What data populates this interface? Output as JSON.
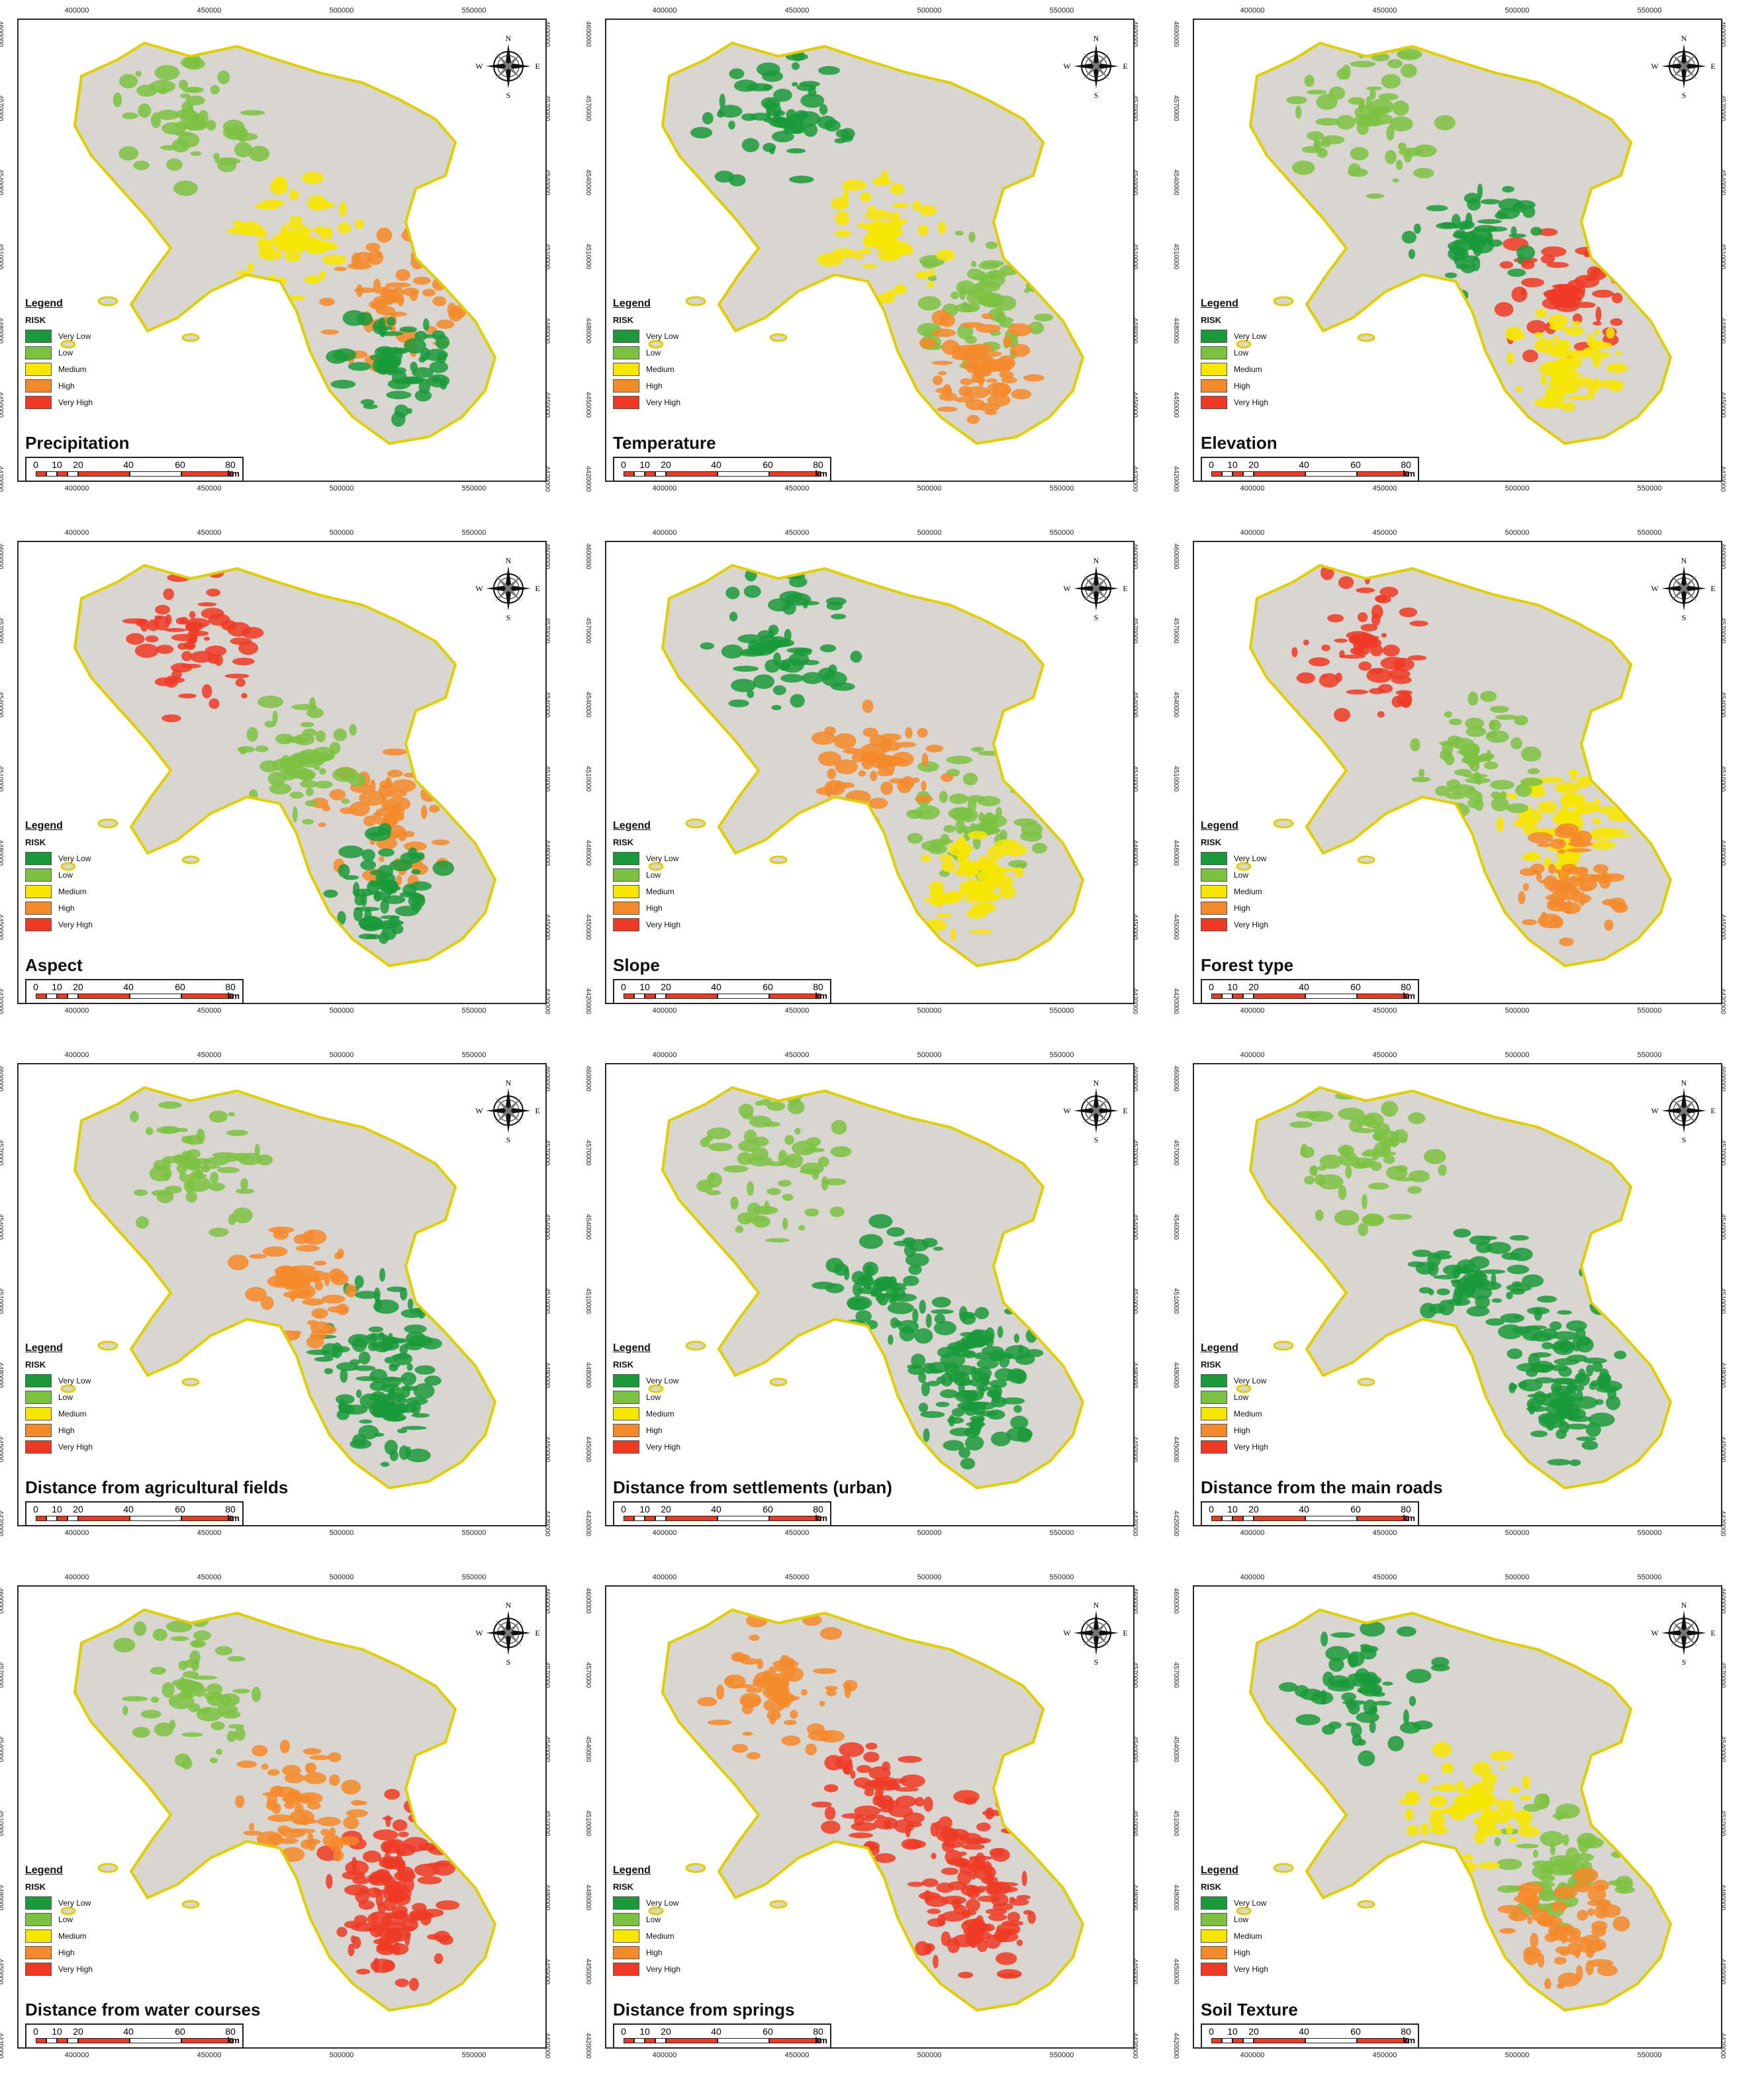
{
  "x_ticks": [
    "400000",
    "450000",
    "500000",
    "550000"
  ],
  "y_ticks": [
    "4600000",
    "4570000",
    "4540000",
    "4510000",
    "4480000",
    "4450000",
    "4420000"
  ],
  "compass": {
    "n": "N",
    "s": "S",
    "e": "E",
    "w": "W"
  },
  "legend": {
    "title": "Legend",
    "subtitle": "RISK",
    "classes": [
      {
        "label": "Very Low",
        "color": "#1a9a3a"
      },
      {
        "label": "Low",
        "color": "#7cc242"
      },
      {
        "label": "Medium",
        "color": "#f7e600"
      },
      {
        "label": "High",
        "color": "#f48a2a"
      },
      {
        "label": "Very High",
        "color": "#ee3a24"
      }
    ]
  },
  "scalebar": {
    "labels": [
      "0",
      "10",
      "20",
      "40",
      "60",
      "80"
    ],
    "unit": "km"
  },
  "colors": {
    "base": "#d9d6d2",
    "border": "#e0cf00"
  },
  "panels": [
    {
      "title": "Precipitation",
      "pattern": [
        "#f48a2a",
        "#f7e600",
        "#7cc242",
        "#1a9a3a"
      ]
    },
    {
      "title": "Temperature",
      "pattern": [
        "#7cc242",
        "#f7e600",
        "#1a9a3a",
        "#f48a2a"
      ]
    },
    {
      "title": "Elevation",
      "pattern": [
        "#ee3a24",
        "#1a9a3a",
        "#7cc242",
        "#f7e600"
      ]
    },
    {
      "title": "Aspect",
      "pattern": [
        "#f48a2a",
        "#7cc242",
        "#ee3a24",
        "#1a9a3a"
      ]
    },
    {
      "title": "Slope",
      "pattern": [
        "#7cc242",
        "#f48a2a",
        "#1a9a3a",
        "#f7e600"
      ]
    },
    {
      "title": "Forest type",
      "pattern": [
        "#f7e600",
        "#7cc242",
        "#ee3a24",
        "#f48a2a"
      ]
    },
    {
      "title": "Distance from agricultural fields",
      "pattern": [
        "#1a9a3a",
        "#f48a2a",
        "#7cc242",
        "#1a9a3a"
      ]
    },
    {
      "title": "Distance from settlements (urban)",
      "pattern": [
        "#1a9a3a",
        "#1a9a3a",
        "#7cc242",
        "#1a9a3a"
      ]
    },
    {
      "title": "Distance from the main roads",
      "pattern": [
        "#1a9a3a",
        "#1a9a3a",
        "#7cc242",
        "#1a9a3a"
      ]
    },
    {
      "title": "Distance from water courses",
      "pattern": [
        "#ee3a24",
        "#f48a2a",
        "#7cc242",
        "#ee3a24"
      ]
    },
    {
      "title": "Distance from springs",
      "pattern": [
        "#ee3a24",
        "#ee3a24",
        "#f48a2a",
        "#ee3a24"
      ]
    },
    {
      "title": "Soil Texture",
      "pattern": [
        "#7cc242",
        "#f7e600",
        "#1a9a3a",
        "#f48a2a"
      ]
    }
  ]
}
